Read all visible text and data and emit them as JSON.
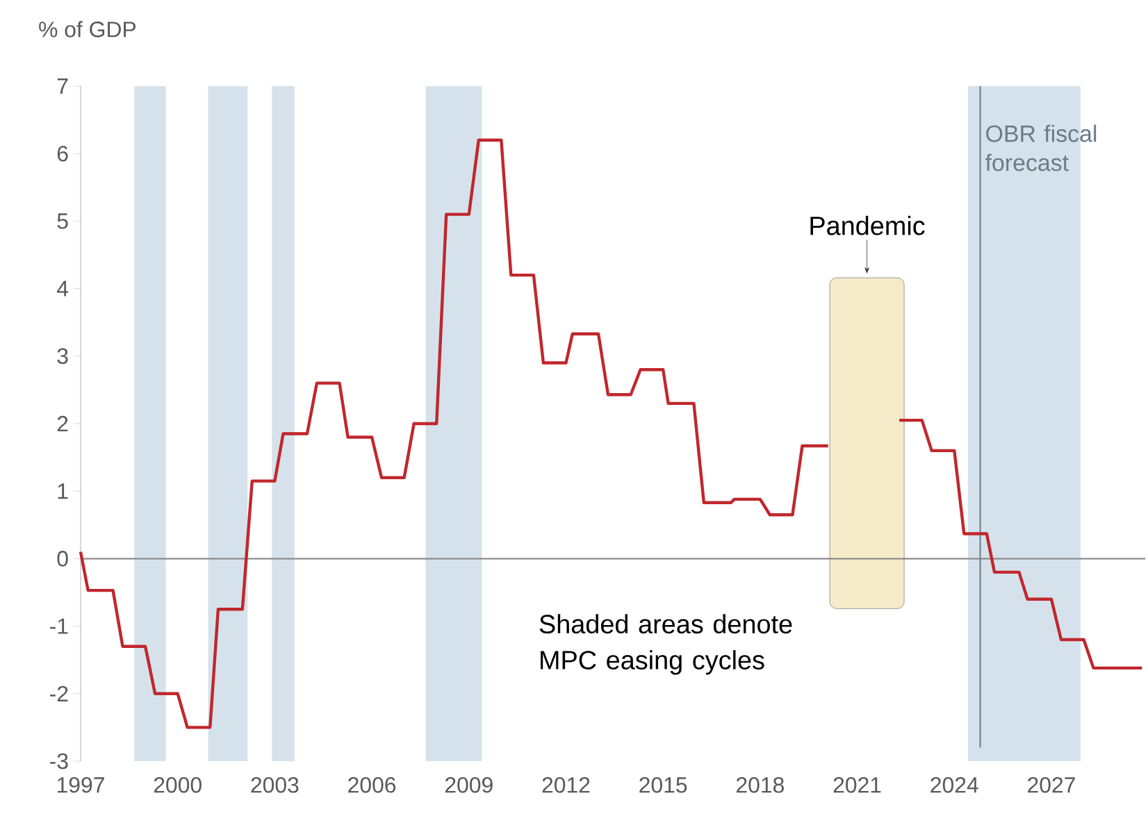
{
  "chart_data": {
    "type": "line",
    "ylabel": "% of GDP",
    "x": [
      1997.0,
      1997.23,
      1998.0,
      1998.3,
      1999.0,
      1999.3,
      2000.0,
      2000.3,
      2001.0,
      2001.25,
      2002.0,
      2002.3,
      2003.0,
      2003.26,
      2004.0,
      2004.3,
      2005.0,
      2005.26,
      2006.0,
      2006.3,
      2007.0,
      2007.3,
      2008.0,
      2008.3,
      2009.0,
      2009.3,
      2010.0,
      2010.3,
      2011.0,
      2011.3,
      2012.0,
      2012.2,
      2013.0,
      2013.3,
      2014.0,
      2014.3,
      2015.0,
      2015.16,
      2015.95,
      2016.26,
      2017.1,
      2017.2,
      2018.0,
      2018.3,
      2019.0,
      2019.3,
      2020.1,
      2021.2,
      2022.3,
      2023.0,
      2023.3,
      2024.0,
      2024.3,
      2025.0,
      2025.24,
      2026.0,
      2026.26,
      2027.0,
      2027.3,
      2028.0,
      2028.3,
      2029.8
    ],
    "values": [
      0.1,
      -0.47,
      -0.47,
      -1.3,
      -1.3,
      -2.0,
      -2.0,
      -2.5,
      -2.5,
      -0.75,
      -0.75,
      1.15,
      1.15,
      1.85,
      1.85,
      2.6,
      2.6,
      1.8,
      1.8,
      1.2,
      1.2,
      2.0,
      2.0,
      5.1,
      5.1,
      6.2,
      6.2,
      4.2,
      4.2,
      2.9,
      2.9,
      3.33,
      3.33,
      2.43,
      2.43,
      2.8,
      2.8,
      2.3,
      2.3,
      0.83,
      0.83,
      0.88,
      0.88,
      0.65,
      0.65,
      1.67,
      1.67,
      null,
      2.05,
      2.05,
      1.6,
      1.6,
      0.37,
      0.37,
      -0.2,
      -0.2,
      -0.6,
      -0.6,
      -1.2,
      -1.2,
      -1.62,
      -1.62
    ],
    "color": "#c0272d",
    "line_style": "solid",
    "marker": "none",
    "xlim": [
      1997,
      2029.9
    ],
    "ylim": [
      -3,
      7
    ],
    "xticks": [
      1997,
      2000,
      2003,
      2006,
      2009,
      2012,
      2015,
      2018,
      2021,
      2024,
      2027
    ],
    "yticks": [
      -3,
      -2,
      -1,
      0,
      1,
      2,
      3,
      4,
      5,
      6,
      7
    ],
    "bands": [
      {
        "axis": "x",
        "from": 1998.66,
        "to": 1999.63,
        "color": "#d6e2eb"
      },
      {
        "axis": "x",
        "from": 2000.94,
        "to": 2002.16,
        "color": "#d6e2eb"
      },
      {
        "axis": "x",
        "from": 2002.91,
        "to": 2003.61,
        "color": "#d6e2eb"
      },
      {
        "axis": "x",
        "from": 2007.66,
        "to": 2009.4,
        "color": "#d6e2eb"
      },
      {
        "axis": "x",
        "from": 2024.42,
        "to": 2027.9,
        "color": "#d6e2eb"
      },
      {
        "axis": "x",
        "from": 2020.15,
        "to": 2022.45,
        "label": "Pandemic",
        "color": "#f6ebc9"
      }
    ],
    "ref_lines": [
      {
        "axis": "y",
        "value": 0,
        "color": "#808080"
      },
      {
        "axis": "x",
        "value": 2024.8,
        "label": "OBR fiscal forecast",
        "color": "#6b7b88"
      }
    ],
    "annotations": [
      "Shaded areas denote MPC easing cycles"
    ],
    "grid": false,
    "legend": false
  }
}
